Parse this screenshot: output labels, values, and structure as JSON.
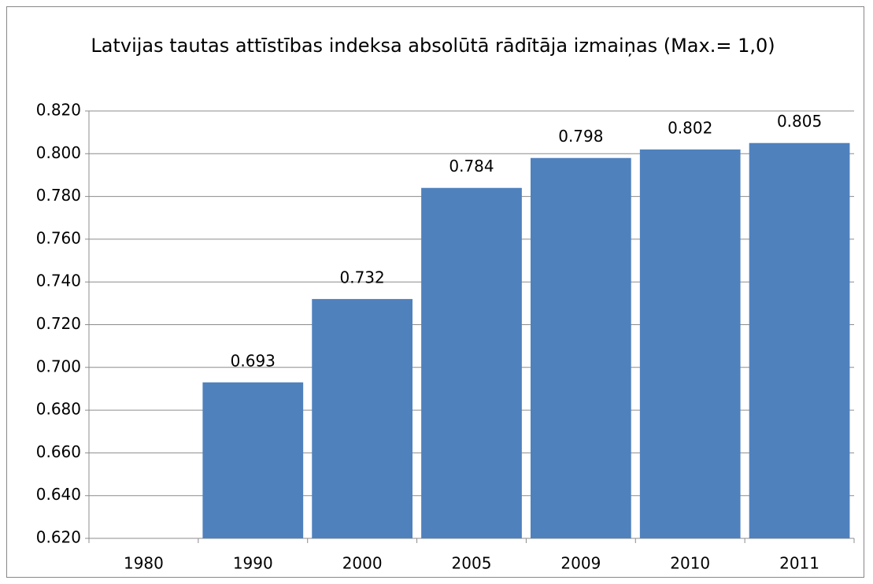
{
  "chart_data": {
    "type": "bar",
    "title": "Latvijas  tautas attīstības indeksa absolūtā rādītāja izmaiņas (Max.= 1,0)",
    "categories": [
      "1980",
      "1990",
      "2000",
      "2005",
      "2009",
      "2010",
      "2011"
    ],
    "values": [
      null,
      0.693,
      0.732,
      0.784,
      0.798,
      0.802,
      0.805
    ],
    "color": "#4f81bd",
    "ylim": [
      0.62,
      0.82
    ],
    "yticks": [
      {
        "value": 0.62,
        "label": "0.620"
      },
      {
        "value": 0.64,
        "label": "0.640"
      },
      {
        "value": 0.66,
        "label": "0.660"
      },
      {
        "value": 0.68,
        "label": "0.680"
      },
      {
        "value": 0.7,
        "label": "0.700"
      },
      {
        "value": 0.72,
        "label": "0.720"
      },
      {
        "value": 0.74,
        "label": "0.740"
      },
      {
        "value": 0.76,
        "label": "0.760"
      },
      {
        "value": 0.78,
        "label": "0.780"
      },
      {
        "value": 0.8,
        "label": "0.800"
      },
      {
        "value": 0.82,
        "label": "0.820"
      }
    ],
    "grid": true
  }
}
